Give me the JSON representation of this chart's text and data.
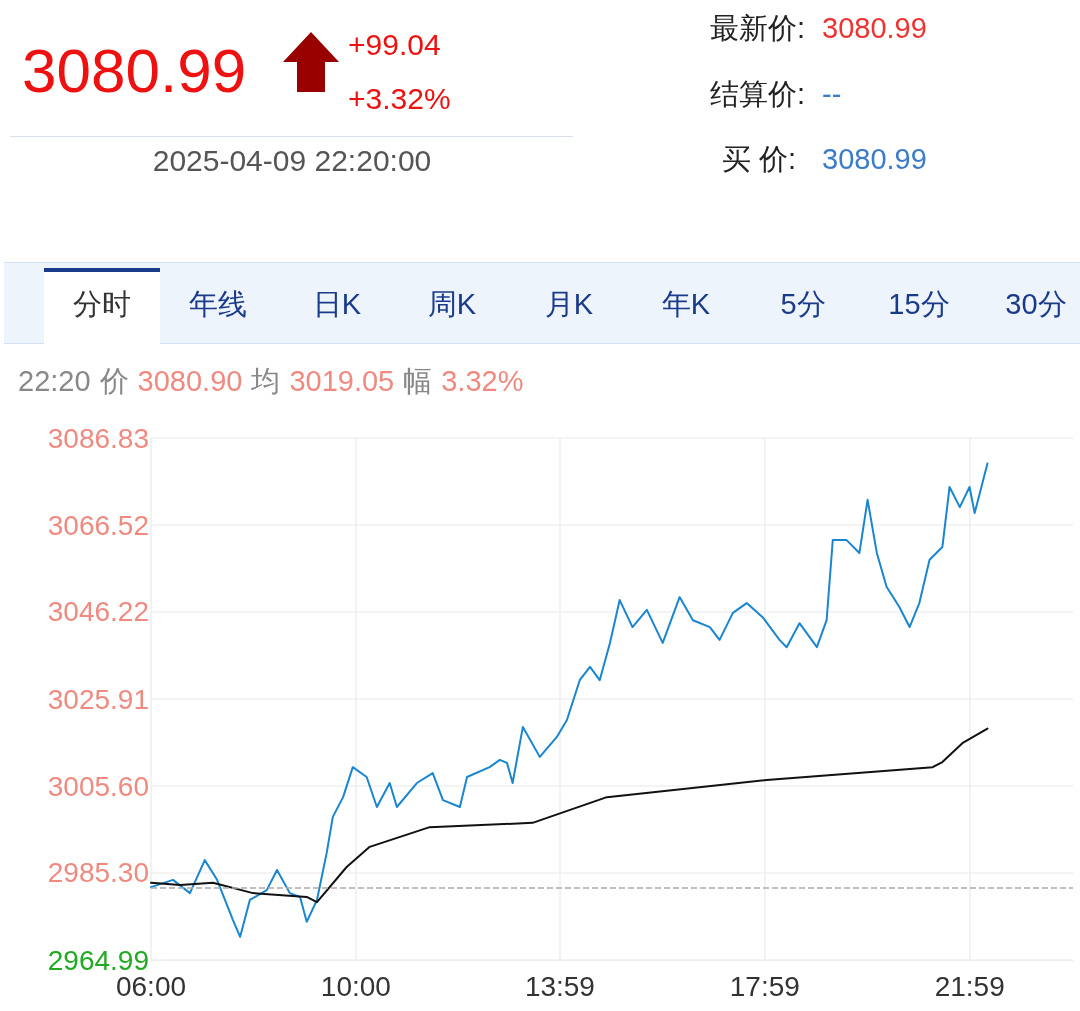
{
  "chart_data": {
    "type": "line",
    "title": "3080.99",
    "subtitle": "2025-04-09 22:20:00",
    "annotations": [
      "+99.04",
      "+3.32%",
      "最新价:",
      "3080.99",
      "结算价:",
      "--",
      "买 价:",
      "3080.99",
      "分时",
      "年线",
      "日K",
      "周K",
      "月K",
      "年K",
      "5分",
      "15分",
      "30分",
      "22:20",
      "价",
      "3080.90",
      "均",
      "3019.05",
      "幅",
      "3.32%"
    ],
    "xlim": [
      6,
      24
    ],
    "xticks": [
      {
        "value": 6,
        "label": "06:00"
      },
      {
        "value": 10,
        "label": "10:00"
      },
      {
        "value": 13.983,
        "label": "13:59"
      },
      {
        "value": 17.983,
        "label": "17:59"
      },
      {
        "value": 21.983,
        "label": "21:59"
      }
    ],
    "ylim": [
      2964.99,
      3086.83
    ],
    "yticks": [
      2964.99,
      {
        "value": 2985.3,
        "label": "2985.30"
      },
      {
        "value": 3005.6,
        "label": "3005.60"
      },
      3025.91,
      3046.22,
      3066.52,
      3086.83
    ],
    "grid": true,
    "marker": "none",
    "line_style": "solid",
    "ref_lines": [
      {
        "axis": "y",
        "value": 2981.95,
        "color": "#aaaaaa",
        "line_style": "dashed"
      }
    ],
    "series": [
      {
        "color": "#1a86d0",
        "x": [
          6.0,
          6.43,
          6.76,
          7.05,
          7.29,
          7.6,
          7.74,
          7.93,
          8.26,
          8.46,
          8.71,
          8.91,
          9.04,
          9.24,
          9.43,
          9.55,
          9.75,
          9.94,
          10.21,
          10.41,
          10.66,
          10.8,
          11.19,
          11.5,
          11.7,
          12.03,
          12.17,
          12.61,
          12.81,
          12.95,
          13.06,
          13.26,
          13.59,
          13.92,
          14.12,
          14.37,
          14.57,
          14.76,
          14.96,
          15.15,
          15.4,
          15.68,
          15.99,
          16.32,
          16.58,
          16.91,
          17.1,
          17.36,
          17.63,
          17.94,
          18.27,
          18.41,
          18.66,
          19.0,
          19.19,
          19.31,
          19.58,
          19.83,
          19.99,
          20.17,
          20.36,
          20.61,
          20.81,
          21.0,
          21.2,
          21.45,
          21.59,
          21.79,
          21.98,
          22.08,
          22.33
        ],
        "values": [
          2982.0,
          2983.7,
          2980.6,
          2988.3,
          2983.7,
          2974.3,
          2970.4,
          2979.0,
          2981.3,
          2986.0,
          2980.6,
          2979.7,
          2973.9,
          2979.0,
          2990.0,
          2998.4,
          3003.0,
          3010.0,
          3007.7,
          3000.7,
          3006.3,
          3000.7,
          3006.3,
          3008.6,
          3002.3,
          3000.7,
          3007.7,
          3010.0,
          3011.7,
          3011.0,
          3006.3,
          3019.4,
          3012.4,
          3017.0,
          3021.0,
          3030.3,
          3033.4,
          3030.3,
          3039.0,
          3049.0,
          3042.7,
          3046.7,
          3039.0,
          3049.7,
          3044.3,
          3042.7,
          3039.7,
          3046.0,
          3048.3,
          3045.0,
          3039.7,
          3038.0,
          3043.6,
          3038.0,
          3044.3,
          3063.0,
          3063.0,
          3060.0,
          3072.4,
          3060.0,
          3052.1,
          3047.4,
          3042.7,
          3048.3,
          3058.4,
          3061.4,
          3075.4,
          3070.7,
          3075.4,
          3069.3,
          3080.9
        ]
      },
      {
        "color": "#111111",
        "x": [
          6.0,
          6.57,
          7.21,
          7.99,
          9.04,
          9.24,
          9.82,
          10.27,
          11.44,
          13.45,
          14.9,
          18.02,
          21.26,
          21.45,
          21.84,
          22.33
        ],
        "values": [
          2983.0,
          2982.5,
          2983.0,
          2980.6,
          2979.7,
          2978.5,
          2986.7,
          2991.4,
          2996.0,
          2997.0,
          3003.0,
          3007.0,
          3010.0,
          3011.2,
          3015.6,
          3019.0
        ]
      }
    ]
  }
}
